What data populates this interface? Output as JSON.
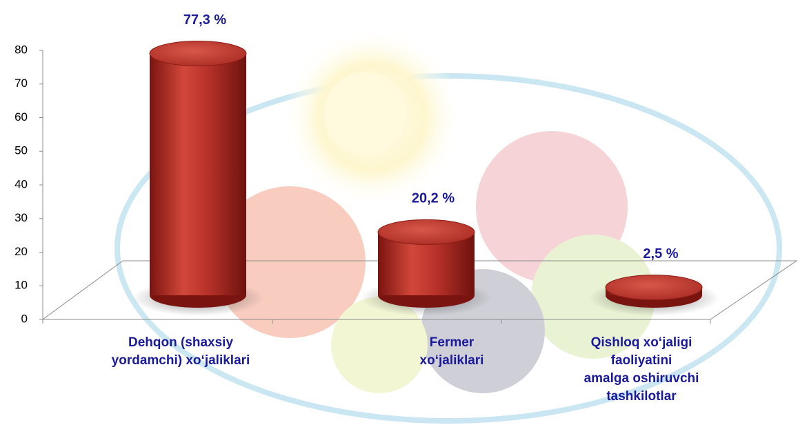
{
  "chart_data": {
    "type": "bar",
    "categories": [
      "Dehqon (shaxsiy\nyordamchi) xoʻjaliklari",
      "Fermer\nxoʻjaliklari",
      "Qishloq xoʻjaligi\nfaoliyatini\namalga oshiruvchi\ntashkilotlar"
    ],
    "values": [
      77.3,
      20.2,
      2.5
    ],
    "value_labels": [
      "77,3 %",
      "20,2 %",
      "2,5 %"
    ],
    "color": "#c0392b",
    "ylim": [
      0,
      80
    ],
    "yticks": [
      0,
      10,
      20,
      30,
      40,
      50,
      60,
      70,
      80
    ],
    "grid": false
  }
}
